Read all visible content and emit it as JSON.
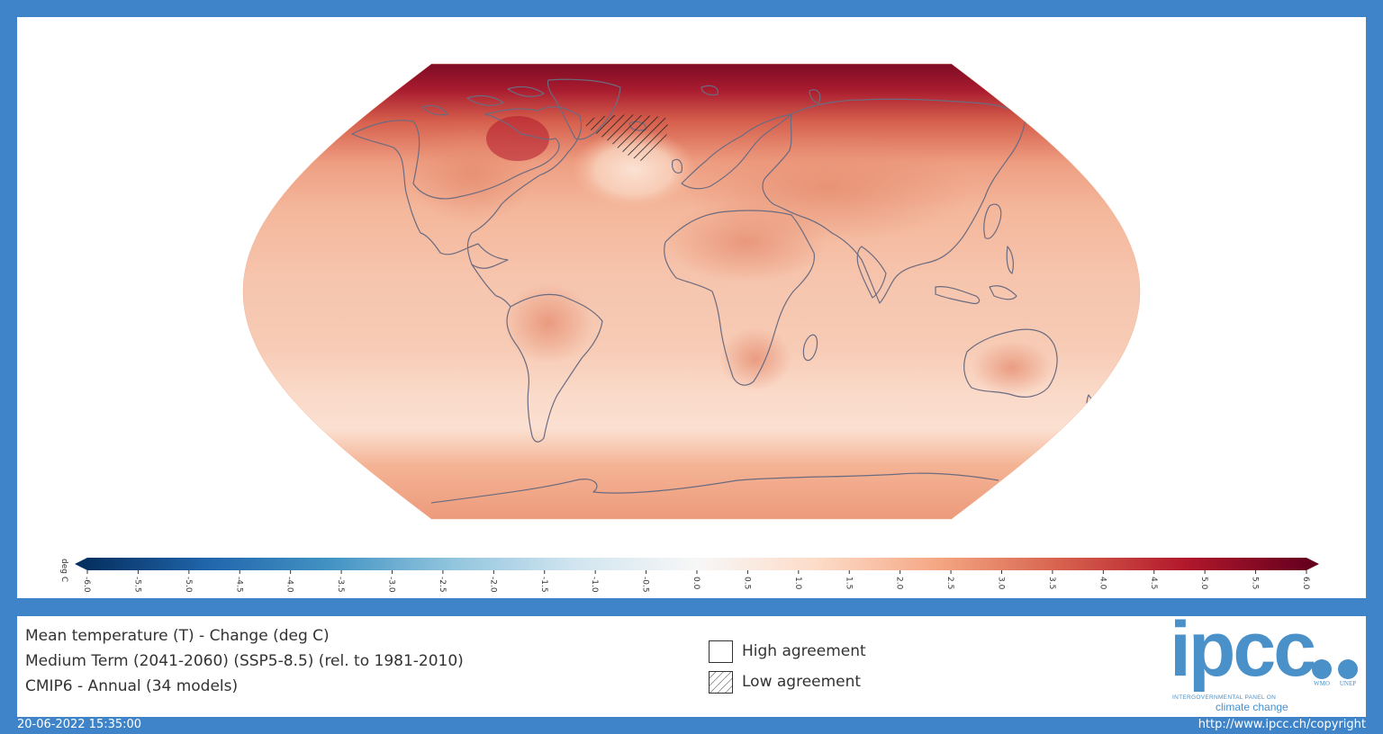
{
  "map": {
    "projection": "Robinson",
    "low_agreement_hatching_region": "North Atlantic (south of Greenland)",
    "field_description": "Warming everywhere; strongest over the Arctic (up to ~6 deg C), weakest over the Southern Ocean and the North Atlantic hatched region"
  },
  "colorbar": {
    "unit_label": "deg C",
    "ticks": [
      "-6.0",
      "-5.5",
      "-5.0",
      "-4.5",
      "-4.0",
      "-3.5",
      "-3.0",
      "-2.5",
      "-2.0",
      "-1.5",
      "-1.0",
      "-0.5",
      "0.0",
      "0.5",
      "1.0",
      "1.5",
      "2.0",
      "2.5",
      "3.0",
      "3.5",
      "4.0",
      "4.5",
      "5.0",
      "5.5",
      "6.0"
    ],
    "colors": [
      "#053061",
      "#2166ac",
      "#4393c3",
      "#92c5de",
      "#d1e5f0",
      "#f7f7f7",
      "#fddbc7",
      "#f4a582",
      "#d6604d",
      "#b2182b",
      "#67001f"
    ],
    "extend": "both"
  },
  "info": {
    "line1": "Mean temperature (T) - Change (deg C)",
    "line2": "Medium Term (2041-2060) (SSP5-8.5) (rel. to 1981-2010)",
    "line3": "CMIP6 - Annual (34 models)"
  },
  "legend": {
    "high": "High agreement",
    "low": "Low agreement"
  },
  "logo": {
    "word": "ipcc",
    "subtitle": "INTERGOVERNMENTAL PANEL ON",
    "tagline": "climate change",
    "partner1": "WMO",
    "partner2": "UNEP"
  },
  "footer": {
    "timestamp": "20-06-2022 15:35:00",
    "copyright": "http://www.ipcc.ch/copyright"
  }
}
